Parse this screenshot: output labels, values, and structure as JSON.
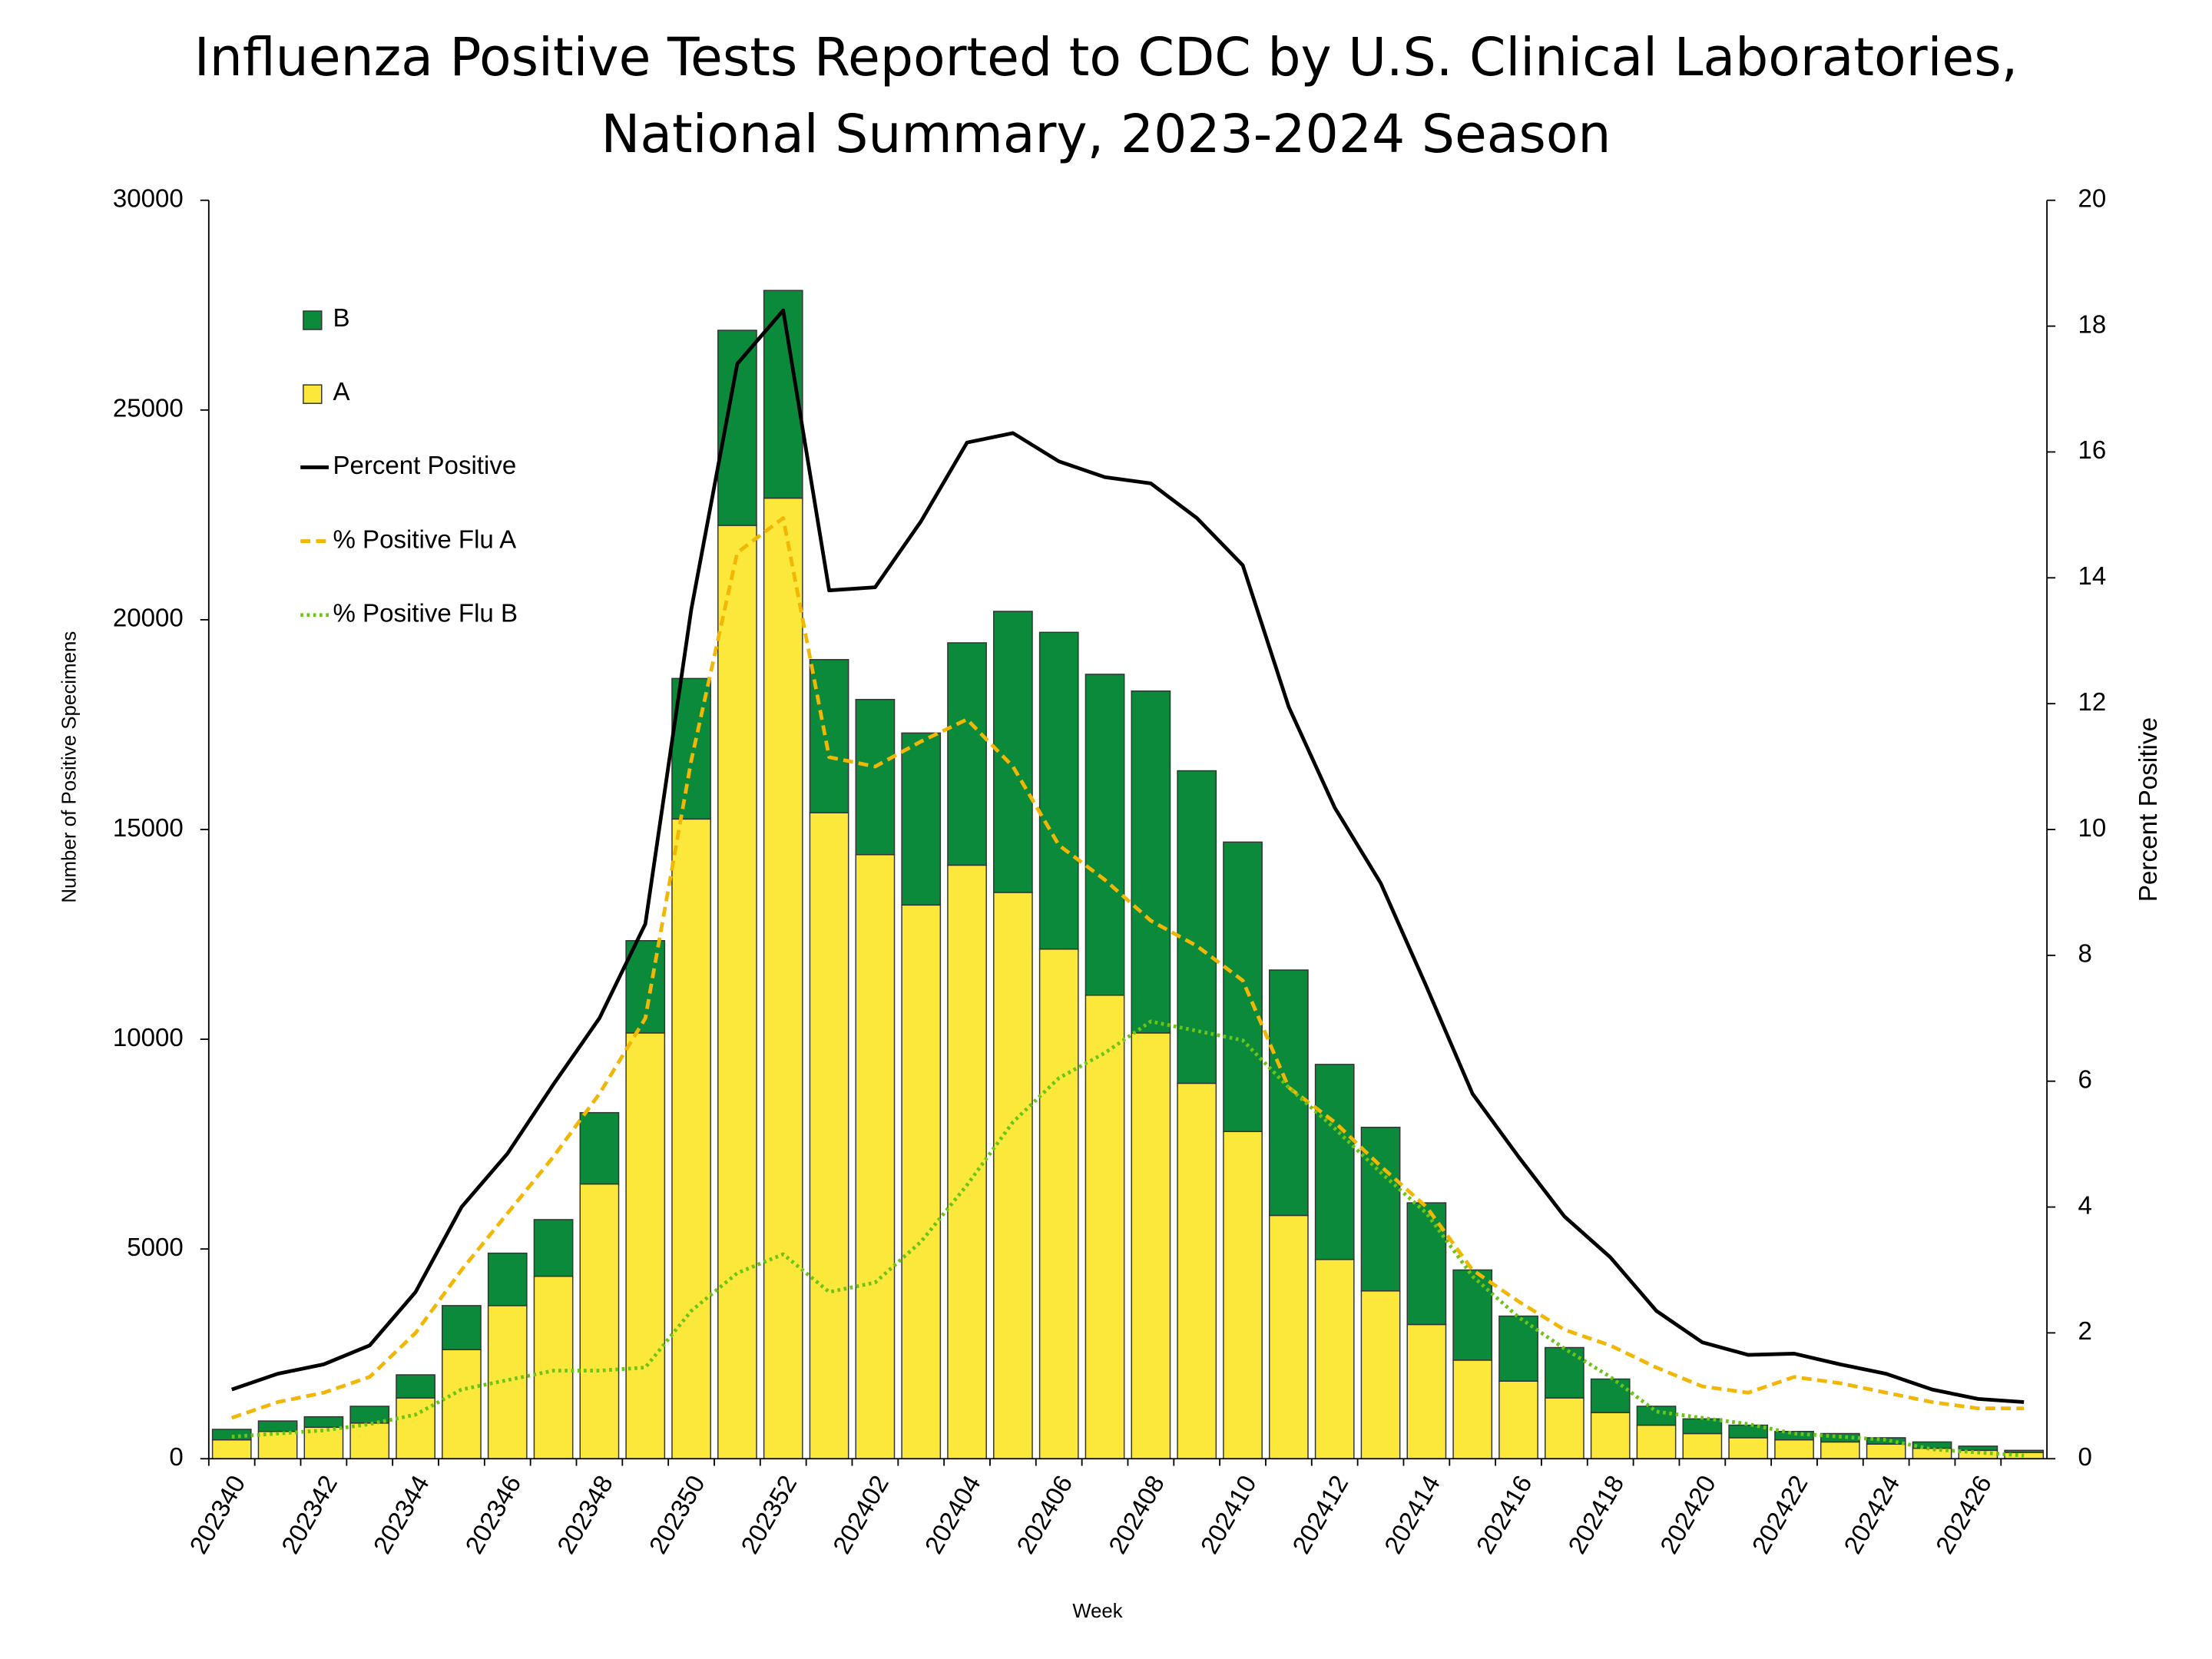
{
  "chart_data": {
    "type": "bar",
    "title": [
      "Influenza Positive Tests Reported to CDC by U.S. Clinical Laboratories,",
      "National Summary, 2023-2024 Season"
    ],
    "x_label": "Week",
    "y_label": "Number of Positive Specimens",
    "y2_label": "Percent Positive",
    "categories": [
      "202340",
      null,
      "202342",
      null,
      "202344",
      null,
      "202346",
      null,
      "202348",
      null,
      "202350",
      null,
      "202352",
      null,
      "202402",
      null,
      "202404",
      null,
      "202406",
      null,
      "202408",
      null,
      "202410",
      null,
      "202412",
      null,
      "202414",
      null,
      "202416",
      null,
      "202418",
      null,
      "202420",
      null,
      "202422",
      null,
      "202424",
      null,
      "202426",
      null
    ],
    "ylim": [
      0,
      30000
    ],
    "yticks": [
      0,
      5000,
      10000,
      15000,
      20000,
      25000,
      30000
    ],
    "y2lim": [
      0,
      20
    ],
    "y2ticks": [
      0,
      2,
      4,
      6,
      8,
      10,
      12,
      14,
      16,
      18,
      20
    ],
    "legend": "upper left",
    "series": [
      {
        "name": "B",
        "type": "bar",
        "color": "#0a8a3a",
        "values": [
          250,
          250,
          250,
          400,
          550,
          1050,
          1250,
          1350,
          1700,
          2200,
          3350,
          4650,
          4950,
          3650,
          3700,
          4100,
          5300,
          6700,
          7550,
          7650,
          8150,
          7450,
          6900,
          5850,
          4650,
          3900,
          2900,
          2150,
          1550,
          1200,
          800,
          450,
          350,
          300,
          200,
          200,
          150,
          150,
          100,
          50
        ]
      },
      {
        "name": "A",
        "type": "bar",
        "color": "#fce83a",
        "values": [
          450,
          650,
          750,
          850,
          1450,
          2600,
          3650,
          4350,
          6550,
          10150,
          15250,
          22250,
          22900,
          15400,
          14400,
          13200,
          14150,
          13500,
          12150,
          11050,
          10150,
          8950,
          7800,
          5800,
          4750,
          4000,
          3200,
          2350,
          1850,
          1450,
          1100,
          800,
          600,
          500,
          450,
          400,
          350,
          250,
          200,
          150
        ]
      },
      {
        "name": "Percent Positive",
        "type": "line",
        "axis": "y2",
        "color": "#000000",
        "values": [
          1.1,
          1.35,
          1.5,
          1.8,
          2.65,
          4.0,
          4.85,
          5.95,
          7.0,
          8.5,
          13.5,
          17.4,
          18.25,
          13.8,
          13.85,
          14.9,
          16.15,
          16.3,
          15.85,
          15.6,
          15.5,
          14.95,
          14.2,
          11.95,
          10.35,
          9.15,
          7.5,
          5.8,
          4.8,
          3.85,
          3.2,
          2.35,
          1.85,
          1.65,
          1.67,
          1.5,
          1.35,
          1.1,
          0.95,
          0.9
        ]
      },
      {
        "name": "% Positive Flu A",
        "type": "line",
        "axis": "y2",
        "color": "#f2b705",
        "dash": "dashed",
        "values": [
          0.65,
          0.9,
          1.05,
          1.3,
          2.0,
          3.0,
          3.9,
          4.8,
          5.8,
          7.0,
          11.1,
          14.4,
          14.95,
          11.15,
          11.0,
          11.4,
          11.75,
          11.0,
          9.75,
          9.2,
          8.55,
          8.15,
          7.6,
          5.9,
          5.35,
          4.65,
          4.0,
          3.0,
          2.5,
          2.05,
          1.8,
          1.45,
          1.15,
          1.05,
          1.3,
          1.2,
          1.05,
          0.9,
          0.8,
          0.8
        ]
      },
      {
        "name": "% Positive Flu B",
        "type": "line",
        "axis": "y2",
        "color": "#6cc417",
        "dash": "dotted",
        "values": [
          0.35,
          0.4,
          0.45,
          0.55,
          0.7,
          1.1,
          1.25,
          1.4,
          1.4,
          1.45,
          2.35,
          2.95,
          3.25,
          2.65,
          2.8,
          3.45,
          4.35,
          5.35,
          6.05,
          6.45,
          6.95,
          6.8,
          6.65,
          5.9,
          5.25,
          4.55,
          3.9,
          2.9,
          2.25,
          1.75,
          1.3,
          0.75,
          0.65,
          0.55,
          0.4,
          0.35,
          0.3,
          0.15,
          0.1,
          0.05
        ]
      }
    ]
  }
}
